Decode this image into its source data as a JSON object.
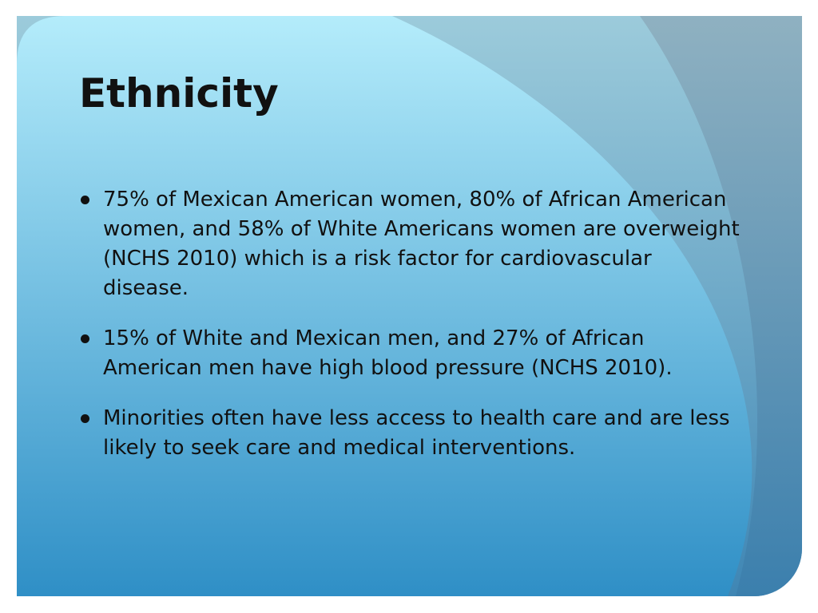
{
  "slide": {
    "title": "Ethnicity",
    "bullets": [
      "75% of Mexican American women, 80% of African American women, and 58% of White Americans women are overweight (NCHS 2010) which is a risk factor for cardiovascular disease.",
      "15% of White and Mexican men, and 27% of African American men have high blood pressure (NCHS 2010).",
      "Minorities often have less access to health care and are less likely to seek care and medical interventions."
    ]
  }
}
